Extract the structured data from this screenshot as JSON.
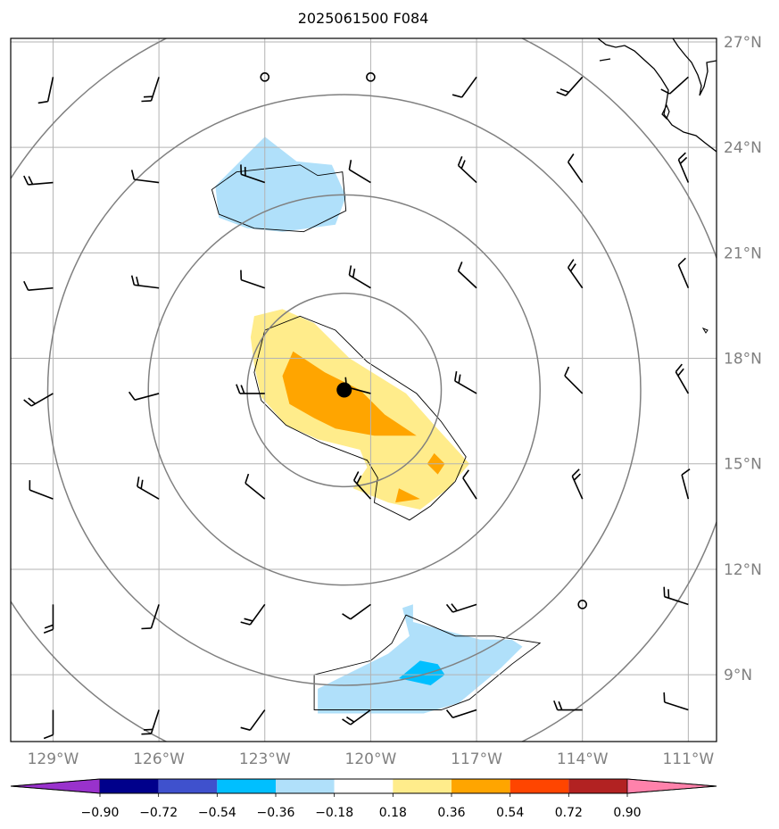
{
  "chart_data": {
    "type": "contour-map",
    "title": "2025061500 F084",
    "extent": {
      "lon": [
        -130.2,
        -110.2
      ],
      "lat": [
        7.1,
        27.1
      ]
    },
    "lat_ticks": [
      {
        "value": 9,
        "label": "9°N"
      },
      {
        "value": 12,
        "label": "12°N"
      },
      {
        "value": 15,
        "label": "15°N"
      },
      {
        "value": 18,
        "label": "18°N"
      },
      {
        "value": 21,
        "label": "21°N"
      },
      {
        "value": 24,
        "label": "24°N"
      },
      {
        "value": 27,
        "label": "27°N"
      }
    ],
    "lon_ticks": [
      {
        "value": -129,
        "label": "129°W"
      },
      {
        "value": -126,
        "label": "126°W"
      },
      {
        "value": -123,
        "label": "123°W"
      },
      {
        "value": -120,
        "label": "120°W"
      },
      {
        "value": -117,
        "label": "117°W"
      },
      {
        "value": -114,
        "label": "114°W"
      },
      {
        "value": -111,
        "label": "111°W"
      }
    ],
    "grid": true,
    "center": {
      "lon": -120.75,
      "lat": 17.1
    },
    "range_rings_deg": [
      2.75,
      5.55,
      8.4,
      11.2
    ],
    "colorbar": {
      "levels": [
        "−0.90",
        "−0.72",
        "−0.54",
        "−0.36",
        "−0.18",
        "0.18",
        "0.36",
        "0.54",
        "0.72",
        "0.90"
      ],
      "colors": [
        "#9932cc",
        "#00008b",
        "#3f51cd",
        "#00bfff",
        "#b0e0fa",
        "#ffffff",
        "#ffec8b",
        "#ffa500",
        "#ff4500",
        "#b22222",
        "#ff82ab"
      ],
      "extend": "both"
    },
    "filled_regions": [
      {
        "level": "-0.36 to -0.18",
        "color": "#b0e0fa",
        "polygon": [
          [
            -123.0,
            24.3
          ],
          [
            -122.1,
            23.6
          ],
          [
            -121.1,
            23.5
          ],
          [
            -120.7,
            22.6
          ],
          [
            -121.0,
            21.8
          ],
          [
            -122.5,
            21.6
          ],
          [
            -123.5,
            21.7
          ],
          [
            -124.3,
            22.0
          ],
          [
            -124.4,
            22.9
          ],
          [
            -123.8,
            23.5
          ]
        ]
      },
      {
        "level": "-0.36 to -0.18",
        "color": "#b0e0fa",
        "polygon": [
          [
            -118.8,
            10.5
          ],
          [
            -116.9,
            10.0
          ],
          [
            -116.0,
            10.0
          ],
          [
            -115.7,
            9.8
          ],
          [
            -116.3,
            9.2
          ],
          [
            -117.5,
            8.2
          ],
          [
            -118.5,
            7.9
          ],
          [
            -120.1,
            7.9
          ],
          [
            -121.5,
            7.9
          ],
          [
            -121.5,
            8.6
          ],
          [
            -120.7,
            9.0
          ],
          [
            -119.5,
            9.6
          ],
          [
            -118.9,
            10.1
          ],
          [
            -119.1,
            10.9
          ],
          [
            -118.8,
            11.0
          ]
        ]
      },
      {
        "level": "-0.54 to -0.36",
        "color": "#00bfff",
        "polygon": [
          [
            -119.2,
            8.9
          ],
          [
            -118.3,
            8.7
          ],
          [
            -117.9,
            9.0
          ],
          [
            -118.1,
            9.3
          ],
          [
            -118.6,
            9.4
          ]
        ]
      },
      {
        "level": "0.18 to 0.36",
        "color": "#ffec8b",
        "polygon": [
          [
            -123.3,
            19.2
          ],
          [
            -122.5,
            19.4
          ],
          [
            -121.6,
            19.0
          ],
          [
            -120.6,
            18.0
          ],
          [
            -119.0,
            17.0
          ],
          [
            -118.2,
            16.1
          ],
          [
            -117.2,
            15.0
          ],
          [
            -117.8,
            14.3
          ],
          [
            -118.6,
            13.7
          ],
          [
            -119.5,
            13.9
          ],
          [
            -120.5,
            14.3
          ],
          [
            -120.1,
            14.9
          ],
          [
            -120.3,
            15.4
          ],
          [
            -121.5,
            15.7
          ],
          [
            -122.4,
            16.1
          ],
          [
            -123.1,
            16.9
          ],
          [
            -123.3,
            17.8
          ],
          [
            -123.4,
            18.6
          ]
        ]
      },
      {
        "level": "0.36 to 0.54",
        "color": "#ffa500",
        "polygon": [
          [
            -122.2,
            18.2
          ],
          [
            -121.3,
            17.6
          ],
          [
            -120.3,
            17.1
          ],
          [
            -119.6,
            16.4
          ],
          [
            -118.7,
            15.8
          ],
          [
            -119.9,
            15.8
          ],
          [
            -121.0,
            16.0
          ],
          [
            -121.6,
            16.3
          ],
          [
            -122.3,
            16.7
          ],
          [
            -122.5,
            17.5
          ]
        ]
      },
      {
        "level": "0.36 to 0.54",
        "color": "#ffa500",
        "polygon": [
          [
            -118.2,
            15.3
          ],
          [
            -117.9,
            15.0
          ],
          [
            -118.1,
            14.7
          ],
          [
            -118.4,
            15.0
          ]
        ]
      },
      {
        "level": "0.36 to 0.54",
        "color": "#ffa500",
        "polygon": [
          [
            -119.2,
            14.3
          ],
          [
            -118.6,
            14.0
          ],
          [
            -119.3,
            13.9
          ]
        ]
      }
    ],
    "wind_barb_count": 42,
    "calm_markers": [
      {
        "lon": -123.0,
        "lat": 26.0
      },
      {
        "lon": -120.0,
        "lat": 26.0
      },
      {
        "lon": -114.0,
        "lat": 11.0
      }
    ]
  }
}
